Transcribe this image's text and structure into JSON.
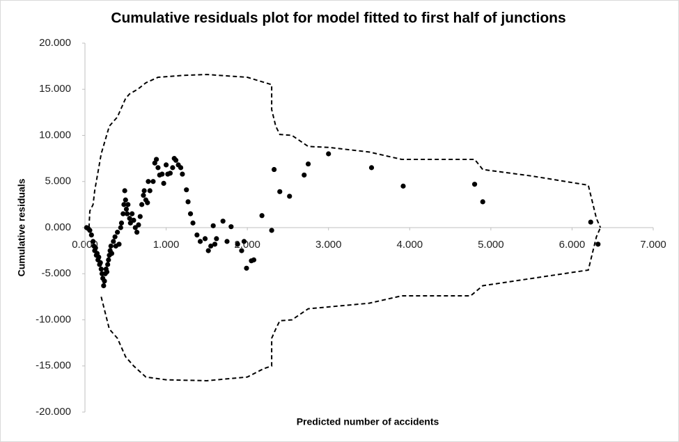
{
  "chart_data": {
    "type": "scatter",
    "title": "Cumulative residuals plot for model fitted to first half of junctions",
    "xlabel": "Predicted number of accidents",
    "ylabel": "Cumulative residuals",
    "xlim": [
      0,
      7
    ],
    "ylim": [
      -20,
      20
    ],
    "xticks": [
      {
        "value": 0,
        "label": "0.000"
      },
      {
        "value": 1,
        "label": "1.000"
      },
      {
        "value": 2,
        "label": "2.000"
      },
      {
        "value": 3,
        "label": "3.000"
      },
      {
        "value": 4,
        "label": "4.000"
      },
      {
        "value": 5,
        "label": "5.000"
      },
      {
        "value": 6,
        "label": "6.000"
      },
      {
        "value": 7,
        "label": "7.000"
      }
    ],
    "yticks": [
      {
        "value": -20,
        "label": "-20.000"
      },
      {
        "value": -15,
        "label": "-15.000"
      },
      {
        "value": -10,
        "label": "-10.000"
      },
      {
        "value": -5,
        "label": "-5.000"
      },
      {
        "value": 0,
        "label": "0.000"
      },
      {
        "value": 5,
        "label": "5.000"
      },
      {
        "value": 10,
        "label": "10.000"
      },
      {
        "value": 15,
        "label": "15.000"
      },
      {
        "value": 20,
        "label": "20.000"
      }
    ],
    "grid": false,
    "series": [
      {
        "style": "markers",
        "color": "#000000",
        "x": [
          0.02,
          0.04,
          0.06,
          0.08,
          0.1,
          0.11,
          0.12,
          0.13,
          0.14,
          0.15,
          0.16,
          0.17,
          0.18,
          0.19,
          0.2,
          0.21,
          0.22,
          0.23,
          0.24,
          0.25,
          0.26,
          0.27,
          0.28,
          0.29,
          0.3,
          0.31,
          0.32,
          0.33,
          0.35,
          0.37,
          0.38,
          0.4,
          0.42,
          0.44,
          0.45,
          0.47,
          0.48,
          0.49,
          0.5,
          0.51,
          0.52,
          0.53,
          0.55,
          0.56,
          0.58,
          0.6,
          0.62,
          0.64,
          0.66,
          0.68,
          0.7,
          0.72,
          0.73,
          0.75,
          0.77,
          0.78,
          0.8,
          0.84,
          0.86,
          0.88,
          0.9,
          0.92,
          0.95,
          0.97,
          1.0,
          1.02,
          1.05,
          1.08,
          1.1,
          1.12,
          1.15,
          1.18,
          1.2,
          1.25,
          1.27,
          1.3,
          1.33,
          1.38,
          1.42,
          1.48,
          1.52,
          1.55,
          1.58,
          1.6,
          1.62,
          1.7,
          1.75,
          1.8,
          1.88,
          1.93,
          1.96,
          1.99,
          2.05,
          2.08,
          2.18,
          2.3,
          2.33,
          2.4,
          2.52,
          2.7,
          2.75,
          3.0,
          3.53,
          3.92,
          4.8,
          4.9,
          6.23,
          6.32
        ],
        "y": [
          0,
          -0.1,
          -0.3,
          -0.8,
          -1.5,
          -2,
          -2.5,
          -2.2,
          -3,
          -2.8,
          -3.5,
          -3.2,
          -4,
          -3.8,
          -4.5,
          -5,
          -5.5,
          -6.3,
          -5.8,
          -5,
          -4.5,
          -4.8,
          -4,
          -3.5,
          -3,
          -2.5,
          -2,
          -2.8,
          -1.5,
          -1,
          -2,
          -0.5,
          -1.8,
          0,
          0.5,
          1.5,
          2.5,
          4,
          3,
          2,
          1.5,
          2.5,
          1,
          0.5,
          1.5,
          0.8,
          0,
          -0.5,
          0.3,
          1.2,
          2.5,
          3.5,
          4,
          3,
          2.7,
          5,
          4,
          5,
          7,
          7.4,
          6.5,
          5.7,
          5.8,
          4.8,
          6.8,
          5.8,
          5.9,
          6.5,
          7.5,
          7.3,
          6.8,
          6.5,
          5.8,
          4.1,
          2.8,
          1.5,
          0.5,
          -0.8,
          -1.5,
          -1.2,
          -2.5,
          -2,
          0.2,
          -1.8,
          -1.2,
          0.7,
          -1.5,
          0.1,
          -1.8,
          -2.5,
          -1.5,
          -4.4,
          -3.6,
          -3.5,
          1.3,
          -0.3,
          6.3,
          3.9,
          3.4,
          5.7,
          6.9,
          8,
          6.5,
          4.5,
          4.7,
          2.8,
          0.6,
          -1.8
        ]
      },
      {
        "style": "dashed",
        "color": "#000000",
        "x": [
          0.05,
          0.06,
          0.1,
          0.12,
          0.2,
          0.3,
          0.4,
          0.5,
          0.55,
          0.65,
          0.75,
          0.9,
          1.2,
          1.5,
          2.0,
          2.3,
          2.3,
          2.35,
          2.4,
          2.55,
          2.75,
          3.0,
          3.5,
          3.9,
          4.8,
          4.9,
          5.5,
          6.2,
          6.3,
          6.35
        ],
        "y": [
          0,
          1.8,
          2.5,
          4,
          8,
          11,
          12,
          14,
          14.5,
          15,
          15.7,
          16.3,
          16.5,
          16.6,
          16.3,
          15.5,
          12.8,
          11,
          10.1,
          10,
          8.8,
          8.7,
          8.2,
          7.4,
          7.4,
          6.3,
          5.6,
          4.6,
          1,
          0
        ]
      },
      {
        "style": "dashed",
        "color": "#000000",
        "x": [
          0.2,
          0.3,
          0.4,
          0.5,
          0.6,
          0.75,
          1.0,
          1.5,
          2.0,
          2.2,
          2.3,
          2.3,
          2.35,
          2.4,
          2.55,
          2.75,
          3.5,
          3.9,
          4.75,
          4.9,
          6.2,
          6.3,
          6.35
        ],
        "y": [
          -7.5,
          -11,
          -12,
          -14,
          -15,
          -16.2,
          -16.5,
          -16.6,
          -16.2,
          -15.3,
          -15,
          -12,
          -11,
          -10.1,
          -10,
          -8.8,
          -8.2,
          -7.4,
          -7.4,
          -6.3,
          -4.6,
          -1,
          0
        ]
      }
    ]
  }
}
